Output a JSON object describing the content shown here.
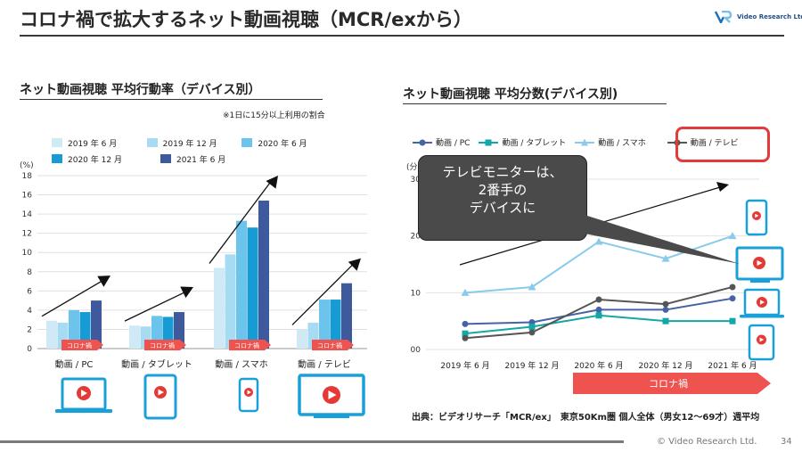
{
  "page": {
    "title": "コロナ禍で拡大するネット動画視聴（MCR/exから）",
    "logo_text": "Video Research Ltd.",
    "copyright": "© Video Research Ltd.",
    "page_number": "34",
    "source": "出典：ビデオリサーチ「MCR/ex」　東京50Km圏 個人全体（男女12～69才）週平均"
  },
  "colors": {
    "series_bars": [
      "#cfe9f7",
      "#a7dbf3",
      "#6cc4ec",
      "#169bd4",
      "#3f5a9c"
    ],
    "arrow_red": "#ef5350",
    "highlight": "#e33a3a",
    "line_pc": "#4563a6",
    "line_tablet": "#13a7a6",
    "line_smartphone": "#88cbea",
    "line_tv": "#555555",
    "device_icon": "#19a0d8"
  },
  "chart_data": [
    {
      "type": "bar",
      "title": "ネット動画視聴 平均行動率（デバイス別）",
      "note": "※1日に15分以上利用の割合",
      "ylabel": "(%)",
      "ylim": [
        0,
        18
      ],
      "yticks": [
        "0",
        "2",
        "4",
        "6",
        "8",
        "10",
        "12",
        "14",
        "16",
        "18"
      ],
      "categories": [
        "動画 / PC",
        "動画 / タブレット",
        "動画 / スマホ",
        "動画 / テレビ"
      ],
      "series": [
        {
          "name": "2019 年 6 月",
          "values": [
            2.9,
            2.4,
            8.4,
            2.0
          ]
        },
        {
          "name": "2019 年 12 月",
          "values": [
            2.7,
            2.3,
            9.8,
            2.7
          ]
        },
        {
          "name": "2020 年 6 月",
          "values": [
            4.0,
            3.4,
            13.3,
            5.1
          ]
        },
        {
          "name": "2020 年 12 月",
          "values": [
            3.8,
            3.3,
            12.6,
            5.1
          ]
        },
        {
          "name": "2021 年 6 月",
          "values": [
            5.0,
            3.8,
            15.4,
            6.8
          ]
        }
      ],
      "arrow_label": "コロナ禍",
      "legend_position": "top-left",
      "grid": true
    },
    {
      "type": "line",
      "title": "ネット動画視聴 平均分数(デバイス別)",
      "ylabel": "(分)",
      "ylim": [
        0,
        30
      ],
      "yticks": [
        "00",
        "10",
        "20",
        "30"
      ],
      "categories": [
        "2019 年 6 月",
        "2019 年 12 月",
        "2020 年 6 月",
        "2020 年 12 月",
        "2021 年 6 月"
      ],
      "series": [
        {
          "name": "動画 / PC",
          "values": [
            4.5,
            4.8,
            7.0,
            7.0,
            9.0
          ]
        },
        {
          "name": "動画 / タブレット",
          "values": [
            2.8,
            4.0,
            6.0,
            5.0,
            5.0
          ]
        },
        {
          "name": "動画 / スマホ",
          "values": [
            10.0,
            11.0,
            19.0,
            16.0,
            20.0
          ]
        },
        {
          "name": "動画 / テレビ",
          "values": [
            2.0,
            3.0,
            8.8,
            8.0,
            11.0
          ]
        }
      ],
      "callout_lines": [
        "テレビモニターは、",
        "2番手の",
        "デバイスに"
      ],
      "banner_label": "コロナ禍",
      "legend_position": "top",
      "grid": true
    }
  ]
}
